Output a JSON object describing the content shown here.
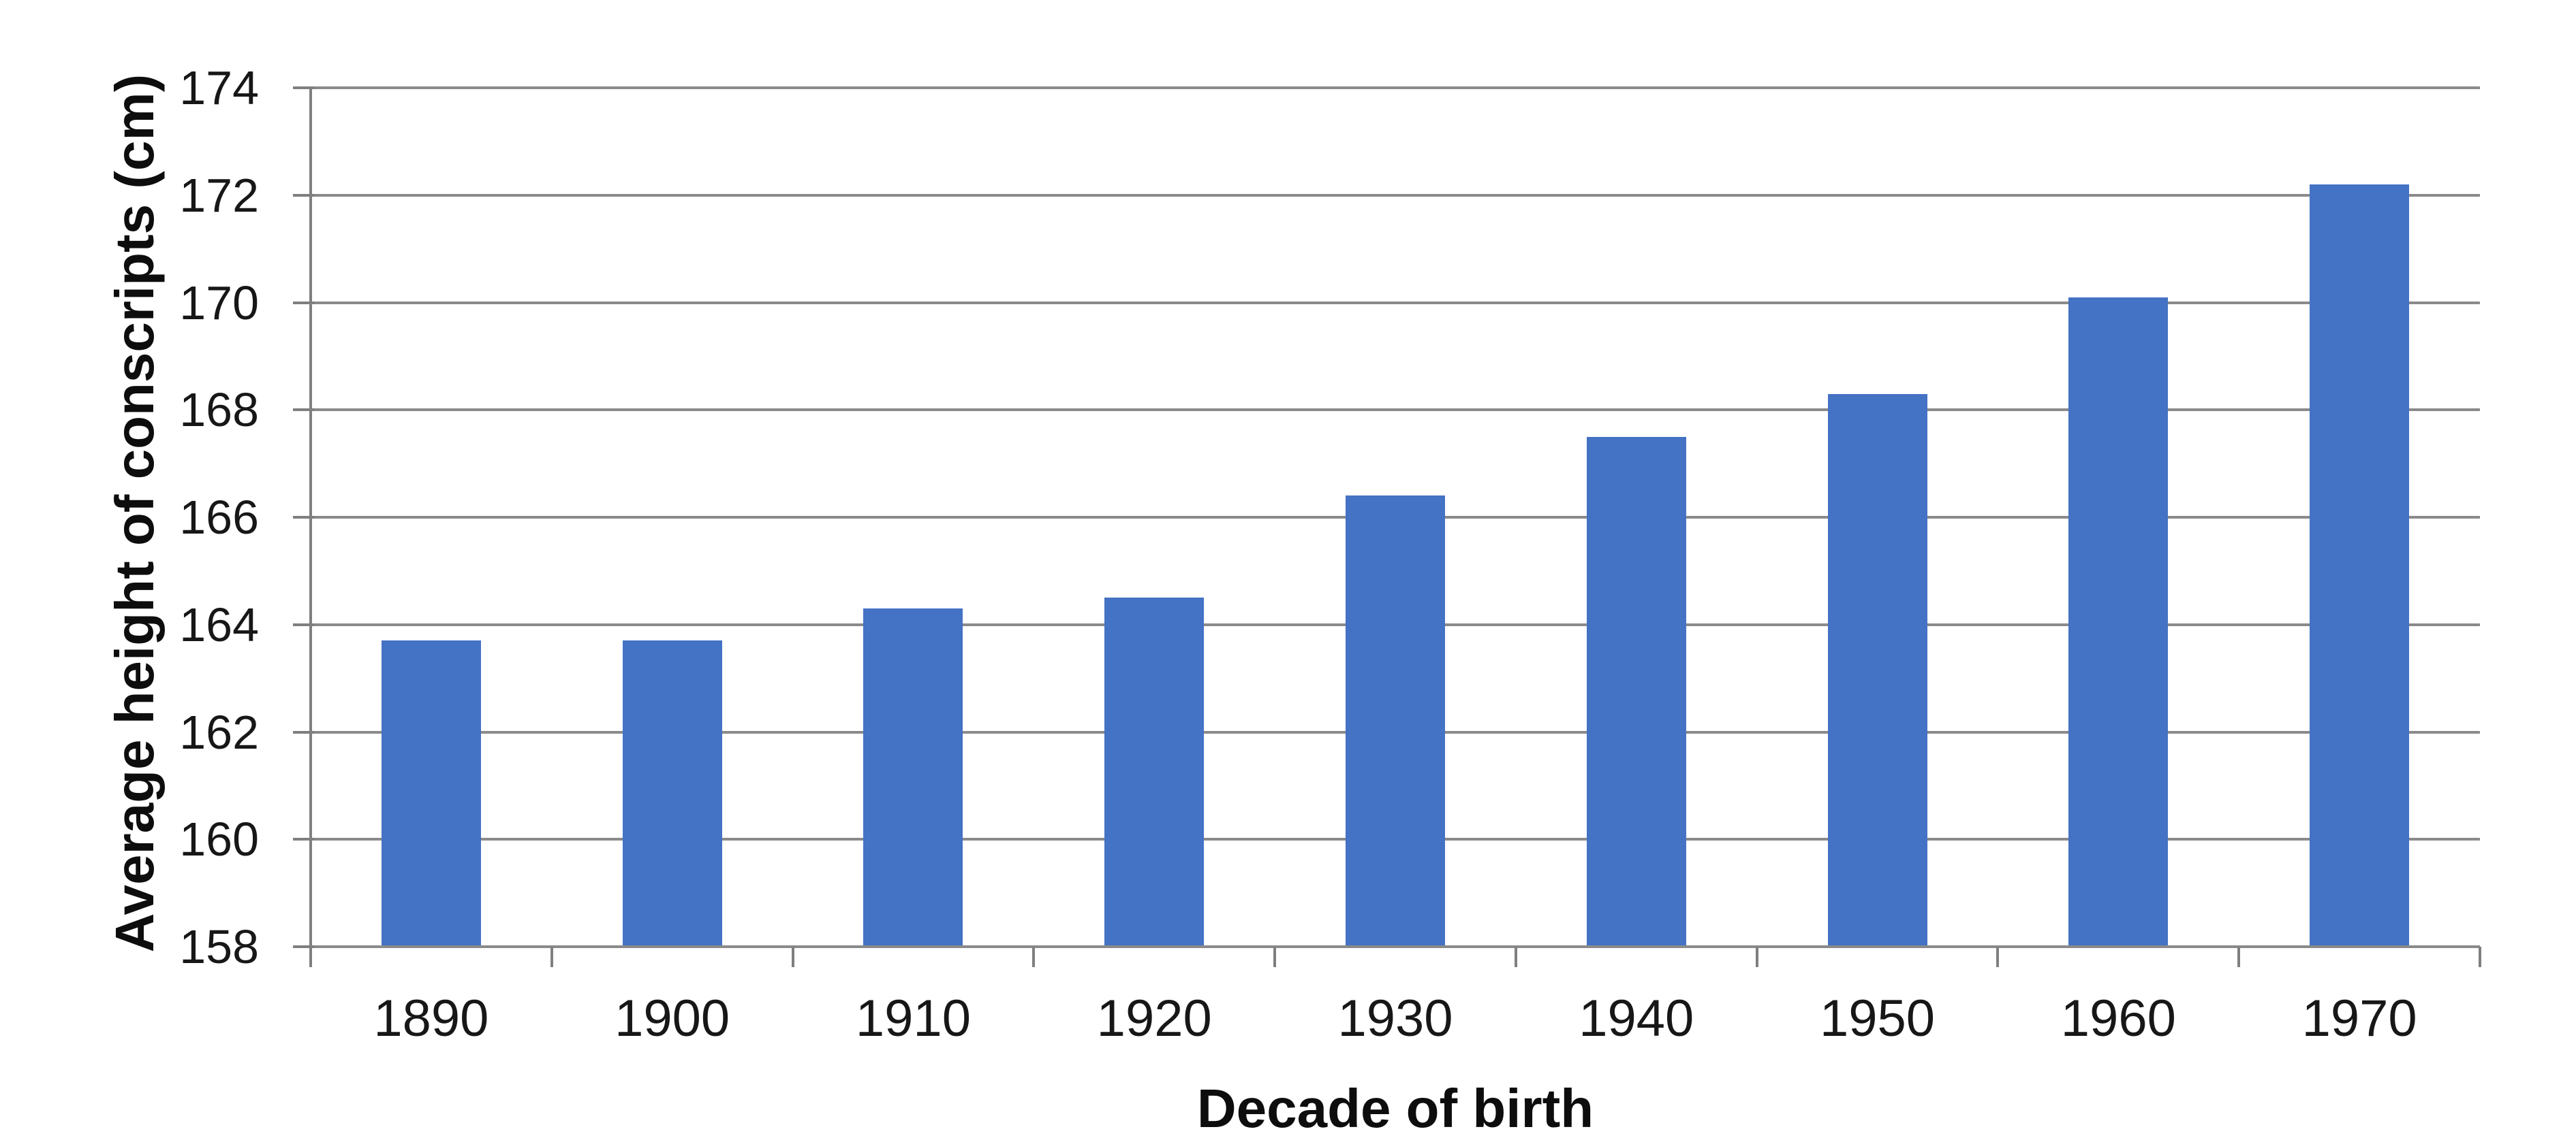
{
  "chart_data": {
    "type": "bar",
    "title": "",
    "categories": [
      "1890",
      "1900",
      "1910",
      "1920",
      "1930",
      "1940",
      "1950",
      "1960",
      "1970"
    ],
    "values": [
      163.7,
      163.7,
      164.3,
      164.5,
      166.4,
      167.5,
      168.3,
      170.1,
      172.2
    ],
    "xlabel": "Decade of birth",
    "ylabel": "Average height of conscripts (cm)",
    "ylim": [
      158,
      174
    ],
    "ytick_step": 2,
    "yticks": [
      158,
      160,
      162,
      164,
      166,
      168,
      170,
      172,
      174
    ],
    "grid": true,
    "legend_position": "none",
    "bar_color": "#4472C4",
    "grid_color": "#8A8A8A",
    "axis_color": "#7F7F7F",
    "tick_label_color": "#171717",
    "title_color": "#0d0d0d",
    "background_color": "#FFFFFF"
  }
}
